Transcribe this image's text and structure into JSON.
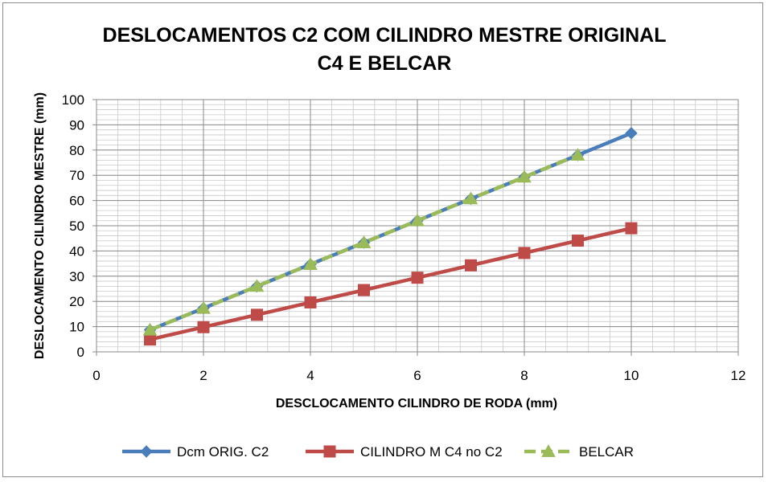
{
  "chart_data": {
    "type": "line",
    "title_lines": [
      "DESLOCAMENTOS C2 COM CILINDRO MESTRE ORIGINAL",
      "C4 E BELCAR"
    ],
    "xlabel": "DESCLOCAMENTO CILINDRO DE RODA (mm)",
    "ylabel": "DESLOCAMENTO CILINDRO MESTRE (mm)",
    "xlim": [
      0,
      12
    ],
    "ylim": [
      0,
      100
    ],
    "xticks": [
      0,
      2,
      4,
      6,
      8,
      10,
      12
    ],
    "yticks": [
      0,
      10,
      20,
      30,
      40,
      50,
      60,
      70,
      80,
      90,
      100
    ],
    "x_minor_step": 0.4,
    "y_minor_step": 2,
    "grid": true,
    "legend_position": "bottom",
    "series": [
      {
        "name": "Dcm ORIG. C2",
        "color": "#4a7ebb",
        "marker": "diamond",
        "dashed": false,
        "x": [
          1,
          2,
          3,
          4,
          5,
          6,
          7,
          8,
          9,
          10
        ],
        "y": [
          8.7,
          17.3,
          26,
          34.7,
          43.3,
          52,
          60.7,
          69.3,
          78,
          86.7
        ]
      },
      {
        "name": "CILINDRO M C4 no C2",
        "color": "#be4b48",
        "marker": "square",
        "dashed": false,
        "x": [
          1,
          2,
          3,
          4,
          5,
          6,
          7,
          8,
          9,
          10
        ],
        "y": [
          4.9,
          9.8,
          14.7,
          19.6,
          24.5,
          29.4,
          34.3,
          39.2,
          44.1,
          49
        ]
      },
      {
        "name": "BELCAR",
        "color": "#9bbb59",
        "marker": "triangle",
        "dashed": true,
        "x": [
          1,
          2,
          3,
          4,
          5,
          6,
          7,
          8,
          9
        ],
        "y": [
          8.7,
          17.3,
          26,
          34.7,
          43.3,
          52,
          60.7,
          69.3,
          78
        ]
      }
    ]
  }
}
